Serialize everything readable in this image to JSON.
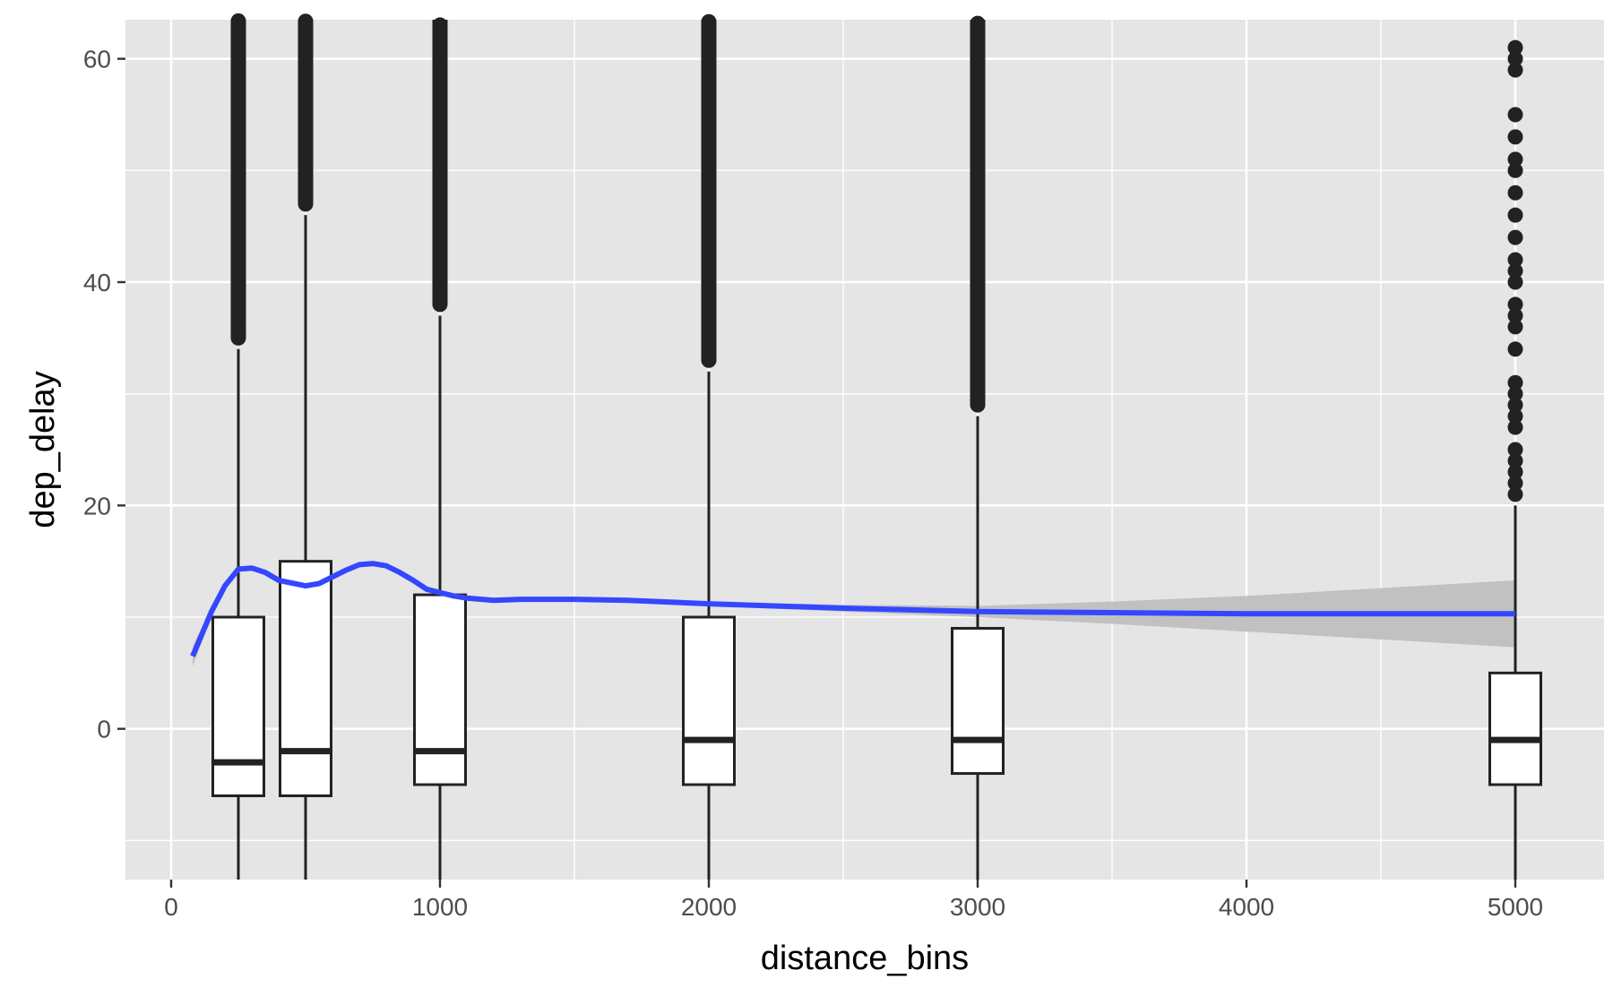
{
  "chart_data": {
    "type": "box",
    "xlabel": "distance_bins",
    "ylabel": "dep_delay",
    "xlim": [
      -170,
      5330
    ],
    "ylim": [
      -13.5,
      63.5
    ],
    "x_ticks": [
      0,
      1000,
      2000,
      3000,
      4000,
      5000
    ],
    "x_tick_labels": [
      "0",
      "1000",
      "2000",
      "3000",
      "4000",
      "5000"
    ],
    "y_ticks": [
      0,
      20,
      40,
      60
    ],
    "y_tick_labels": [
      "0",
      "20",
      "40",
      "60"
    ],
    "grid": true,
    "colors": {
      "panel": "#e5e5e5",
      "grid": "#ffffff",
      "box_fill": "#ffffff",
      "box_line": "#222222",
      "smooth_line": "#3447ff",
      "ribbon": "#bdbdbd"
    },
    "boxes": [
      {
        "x": 250,
        "q1": -6,
        "median": -3,
        "q3": 10,
        "whisker_low": -13.5,
        "whisker_high": 34,
        "outliers_from": 35,
        "outliers_to": 63.5,
        "dense_outliers": true
      },
      {
        "x": 500,
        "q1": -6,
        "median": -2,
        "q3": 15,
        "whisker_low": -13.5,
        "whisker_high": 46,
        "outliers_from": 47,
        "outliers_to": 63.5,
        "dense_outliers": true
      },
      {
        "x": 1000,
        "q1": -5,
        "median": -2,
        "q3": 12,
        "whisker_low": -13.5,
        "whisker_high": 37,
        "outliers_from": 38,
        "outliers_to": 63.5,
        "dense_outliers": true
      },
      {
        "x": 2000,
        "q1": -5,
        "median": -1,
        "q3": 10,
        "whisker_low": -13.5,
        "whisker_high": 32,
        "outliers_from": 33,
        "outliers_to": 63.5,
        "dense_outliers": true
      },
      {
        "x": 3000,
        "q1": -4,
        "median": -1,
        "q3": 9,
        "whisker_low": -13.5,
        "whisker_high": 28,
        "outliers_from": 29,
        "outliers_to": 63.5,
        "dense_outliers": true
      },
      {
        "x": 5000,
        "q1": -5,
        "median": -1,
        "q3": 5,
        "whisker_low": -13.5,
        "whisker_high": 20,
        "dense_outliers": false,
        "outliers": [
          21,
          22,
          23,
          24,
          25,
          27,
          28,
          29,
          30,
          31,
          34,
          36,
          37,
          38,
          40,
          41,
          42,
          44,
          46,
          48,
          50,
          51,
          53,
          55,
          59,
          60,
          61
        ]
      }
    ],
    "box_width": 190,
    "smooth": {
      "x": [
        80,
        150,
        200,
        250,
        300,
        350,
        400,
        500,
        550,
        600,
        650,
        700,
        750,
        800,
        850,
        900,
        950,
        1000,
        1050,
        1100,
        1200,
        1300,
        1500,
        1700,
        2000,
        2500,
        3000,
        3500,
        4000,
        4500,
        5000
      ],
      "y": [
        6.5,
        10.5,
        12.8,
        14.3,
        14.4,
        14.0,
        13.3,
        12.8,
        13.0,
        13.6,
        14.2,
        14.7,
        14.8,
        14.6,
        14.0,
        13.3,
        12.5,
        12.2,
        11.9,
        11.7,
        11.5,
        11.6,
        11.6,
        11.5,
        11.2,
        10.8,
        10.5,
        10.4,
        10.3,
        10.3,
        10.3
      ],
      "ci_half_width": [
        0.9,
        0.4,
        0.25,
        0.2,
        0.2,
        0.2,
        0.2,
        0.2,
        0.2,
        0.2,
        0.2,
        0.2,
        0.2,
        0.2,
        0.2,
        0.2,
        0.2,
        0.2,
        0.2,
        0.2,
        0.2,
        0.2,
        0.2,
        0.2,
        0.2,
        0.3,
        0.5,
        1.0,
        1.6,
        2.3,
        3.0
      ]
    }
  }
}
